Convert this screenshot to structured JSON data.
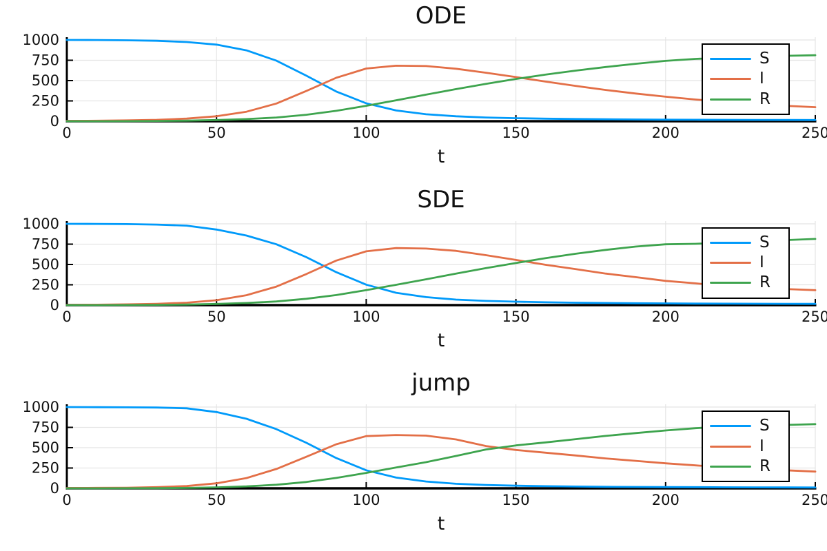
{
  "figure": {
    "background": "#ffffff"
  },
  "colors": {
    "S": "#009afa",
    "I": "#e36f47",
    "R": "#3ea44e",
    "grid": "#e4e4e4",
    "axis": "#000000",
    "text": "#111111"
  },
  "chart_data": [
    {
      "type": "line",
      "title": "ODE",
      "xlabel": "t",
      "ylabel": "",
      "xlim": [
        0,
        250
      ],
      "ylim": [
        0,
        1000
      ],
      "x_ticks": [
        0,
        50,
        100,
        150,
        200,
        250
      ],
      "y_ticks": [
        0,
        250,
        500,
        750,
        1000
      ],
      "grid": true,
      "legend_position": "top-right",
      "x": [
        0,
        10,
        20,
        30,
        40,
        50,
        60,
        70,
        80,
        90,
        100,
        110,
        120,
        130,
        140,
        150,
        160,
        170,
        180,
        190,
        200,
        210,
        220,
        230,
        240,
        250
      ],
      "series": [
        {
          "name": "S",
          "color": "#009afa",
          "values": [
            1000,
            999,
            996,
            990,
            975,
            942,
            872,
            745,
            560,
            365,
            220,
            132,
            86,
            61,
            46,
            37,
            31,
            27,
            24,
            21,
            19,
            18,
            17,
            16,
            15,
            14
          ]
        },
        {
          "name": "I",
          "color": "#e36f47",
          "values": [
            4,
            6,
            10,
            17,
            32,
            61,
            117,
            218,
            372,
            535,
            648,
            683,
            679,
            646,
            597,
            543,
            487,
            434,
            385,
            341,
            302,
            267,
            237,
            211,
            190,
            173
          ]
        },
        {
          "name": "R",
          "color": "#3ea44e",
          "values": [
            0,
            0,
            1,
            3,
            7,
            14,
            26,
            46,
            80,
            128,
            190,
            258,
            327,
            395,
            460,
            520,
            574,
            623,
            667,
            707,
            742,
            767,
            782,
            794,
            804,
            812
          ]
        }
      ]
    },
    {
      "type": "line",
      "title": "SDE",
      "xlabel": "t",
      "ylabel": "",
      "xlim": [
        0,
        250
      ],
      "ylim": [
        0,
        1000
      ],
      "x_ticks": [
        0,
        50,
        100,
        150,
        200,
        250
      ],
      "y_ticks": [
        0,
        250,
        500,
        750,
        1000
      ],
      "grid": true,
      "legend_position": "top-right",
      "x": [
        0,
        10,
        20,
        30,
        40,
        50,
        60,
        70,
        80,
        90,
        100,
        110,
        120,
        130,
        140,
        150,
        160,
        170,
        180,
        190,
        200,
        210,
        220,
        230,
        240,
        250
      ],
      "series": [
        {
          "name": "S",
          "color": "#009afa",
          "values": [
            1000,
            999,
            997,
            991,
            978,
            930,
            856,
            748,
            590,
            405,
            252,
            152,
            98,
            68,
            52,
            42,
            35,
            30,
            26,
            23,
            21,
            19,
            18,
            17,
            16,
            15
          ]
        },
        {
          "name": "I",
          "color": "#e36f47",
          "values": [
            3,
            5,
            9,
            16,
            30,
            60,
            122,
            228,
            382,
            548,
            662,
            702,
            696,
            668,
            614,
            556,
            496,
            442,
            388,
            344,
            298,
            268,
            234,
            214,
            198,
            184
          ]
        },
        {
          "name": "R",
          "color": "#3ea44e",
          "values": [
            0,
            0,
            1,
            3,
            7,
            14,
            26,
            45,
            78,
            124,
            185,
            250,
            318,
            388,
            455,
            518,
            578,
            632,
            680,
            720,
            748,
            754,
            768,
            782,
            800,
            814
          ]
        }
      ]
    },
    {
      "type": "line",
      "title": "jump",
      "xlabel": "t",
      "ylabel": "",
      "xlim": [
        0,
        250
      ],
      "ylim": [
        0,
        1000
      ],
      "x_ticks": [
        0,
        50,
        100,
        150,
        200,
        250
      ],
      "y_ticks": [
        0,
        250,
        500,
        750,
        1000
      ],
      "grid": true,
      "legend_position": "top-right",
      "x": [
        0,
        10,
        20,
        30,
        40,
        50,
        60,
        70,
        80,
        90,
        100,
        110,
        120,
        130,
        140,
        150,
        160,
        170,
        180,
        190,
        200,
        210,
        220,
        230,
        240,
        250
      ],
      "series": [
        {
          "name": "S",
          "color": "#009afa",
          "values": [
            1000,
            998,
            997,
            994,
            985,
            938,
            856,
            728,
            560,
            372,
            222,
            132,
            84,
            56,
            41,
            32,
            26,
            22,
            19,
            17,
            15,
            14,
            13,
            12,
            11,
            10
          ]
        },
        {
          "name": "I",
          "color": "#e36f47",
          "values": [
            4,
            6,
            8,
            14,
            28,
            62,
            126,
            238,
            388,
            542,
            642,
            656,
            648,
            602,
            520,
            472,
            438,
            404,
            368,
            338,
            308,
            282,
            258,
            238,
            222,
            206
          ]
        },
        {
          "name": "R",
          "color": "#3ea44e",
          "values": [
            0,
            0,
            1,
            2,
            5,
            12,
            24,
            44,
            78,
            128,
            190,
            256,
            322,
            398,
            478,
            528,
            565,
            605,
            645,
            680,
            712,
            740,
            762,
            772,
            780,
            790
          ]
        }
      ]
    }
  ]
}
